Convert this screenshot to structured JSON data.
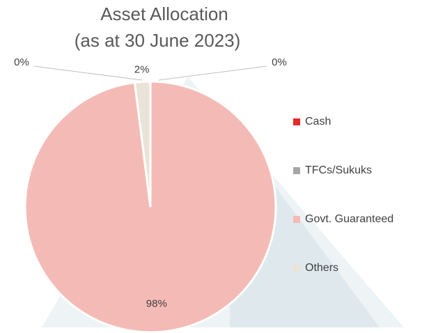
{
  "chart_data": {
    "type": "pie",
    "title": "Asset Allocation",
    "subtitle": "(as at 30 June 2023)",
    "categories": [
      "Cash",
      "TFCs/Sukuks",
      "Govt. Guaranteed",
      "Others"
    ],
    "values": [
      0,
      0,
      98,
      2
    ],
    "value_labels": [
      "0%",
      "0%",
      "98%",
      "2%"
    ],
    "colors": [
      "#e8282b",
      "#a6a6a6",
      "#f4bbb6",
      "#ebe3d7"
    ],
    "legend": "right"
  }
}
